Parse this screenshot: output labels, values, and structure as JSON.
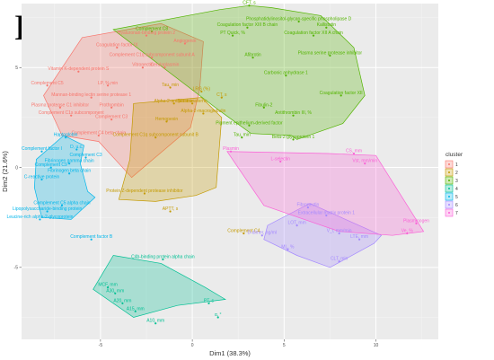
{
  "chart_data": {
    "type": "scatter",
    "panel_label": "B",
    "xlabel": "Dim1 (38.3%)",
    "ylabel": "Dim2 (21.6%)",
    "xlim": [
      -9.3,
      13.4
    ],
    "ylim": [
      -8.6,
      8.2
    ],
    "xticks": [
      -5,
      0,
      5,
      10
    ],
    "yticks": [
      -5,
      0,
      5
    ],
    "tick_labels": [
      "-5",
      "0",
      "5",
      "10"
    ],
    "ytick_labels": [
      "-5",
      "0",
      "5"
    ],
    "grid": true,
    "legend": {
      "title": "cluster",
      "placement": "right",
      "entries": [
        "1",
        "2",
        "3",
        "4",
        "5",
        "6",
        "7"
      ]
    },
    "cluster_colors": [
      "#F8766D",
      "#C49A00",
      "#53B400",
      "#00C094",
      "#00B6EB",
      "#A58AFF",
      "#FB61D7"
    ],
    "hulls": [
      {
        "cluster": "1",
        "points": [
          [
            -6.0,
            6.5
          ],
          [
            -1.7,
            7.2
          ],
          [
            0.6,
            6.3
          ],
          [
            0.4,
            3.9
          ],
          [
            -0.1,
            2.0
          ],
          [
            -3.3,
            -0.5
          ],
          [
            -5.1,
            1.3
          ],
          [
            -7.1,
            1.6
          ],
          [
            -8.1,
            3.6
          ]
        ]
      },
      {
        "cluster": "2",
        "points": [
          [
            -3.2,
            3.2
          ],
          [
            0.5,
            3.5
          ],
          [
            1.6,
            2.5
          ],
          [
            1.3,
            -1.0
          ],
          [
            0.2,
            -1.4
          ],
          [
            -2.0,
            -1.7
          ],
          [
            -4.0,
            -1.6
          ],
          [
            -3.4,
            0.4
          ]
        ]
      },
      {
        "cluster": "3",
        "points": [
          [
            -4.3,
            6.9
          ],
          [
            1.5,
            7.9
          ],
          [
            3.1,
            8.1
          ],
          [
            4.3,
            8.0
          ],
          [
            7.0,
            7.6
          ],
          [
            8.8,
            6.0
          ],
          [
            9.4,
            3.6
          ],
          [
            8.2,
            2.2
          ],
          [
            5.7,
            1.4
          ],
          [
            5.4,
            1.6
          ],
          [
            3.2,
            1.7
          ],
          [
            1.4,
            2.9
          ]
        ]
      },
      {
        "cluster": "4",
        "points": [
          [
            -1.7,
            -4.8
          ],
          [
            0.7,
            -6.0
          ],
          [
            1.8,
            -6.6
          ],
          [
            -0.8,
            -6.9
          ],
          [
            -3.2,
            -7.5
          ],
          [
            -5.4,
            -6.1
          ],
          [
            -4.3,
            -4.4
          ]
        ]
      },
      {
        "cluster": "5",
        "points": [
          [
            -7.0,
            1.6
          ],
          [
            -5.9,
            1.1
          ],
          [
            -6.1,
            0.2
          ],
          [
            -5.7,
            -1.2
          ],
          [
            -5.3,
            -1.5
          ],
          [
            -6.6,
            -2.6
          ],
          [
            -8.2,
            -2.5
          ],
          [
            -8.6,
            -1.0
          ],
          [
            -8.5,
            0.4
          ]
        ]
      },
      {
        "cluster": "6",
        "points": [
          [
            6.4,
            -1.8
          ],
          [
            10.3,
            -3.4
          ],
          [
            9.9,
            -3.8
          ],
          [
            7.5,
            -5.0
          ],
          [
            5.7,
            -4.4
          ],
          [
            3.9,
            -3.6
          ],
          [
            4.1,
            -2.9
          ]
        ]
      },
      {
        "cluster": "7",
        "points": [
          [
            1.9,
            0.8
          ],
          [
            7.4,
            0.7
          ],
          [
            10.0,
            0.6
          ],
          [
            12.6,
            -3.2
          ],
          [
            10.9,
            -3.4
          ],
          [
            8.0,
            -3.2
          ],
          [
            6.1,
            -2.6
          ],
          [
            3.9,
            -1.9
          ]
        ]
      }
    ],
    "points": [
      {
        "label": "Hyaluronan-binding protein 2",
        "x": -2.5,
        "y": 6.6,
        "cluster": "1"
      },
      {
        "label": "Angiogenin",
        "x": -0.4,
        "y": 6.2,
        "cluster": "1"
      },
      {
        "label": "Coagulation factor IX",
        "x": -4.1,
        "y": 6.0,
        "cluster": "1"
      },
      {
        "label": "Complement C1q subcomponent subunit A",
        "x": -2.2,
        "y": 5.5,
        "cluster": "1"
      },
      {
        "label": "Vitronectin",
        "x": -2.7,
        "y": 5.0,
        "cluster": "1"
      },
      {
        "label": "Vitamin K-dependent protein S",
        "x": -6.2,
        "y": 4.8,
        "cluster": "1"
      },
      {
        "label": "Complement C5",
        "x": -7.9,
        "y": 4.1,
        "cluster": "1"
      },
      {
        "label": "LP, %,min",
        "x": -4.6,
        "y": 4.1,
        "cluster": "1"
      },
      {
        "label": "Mannan-binding lectin serine protease 1",
        "x": -5.5,
        "y": 3.5,
        "cluster": "1"
      },
      {
        "label": "Plasma protease C1 inhibitor",
        "x": -7.2,
        "y": 3.0,
        "cluster": "1"
      },
      {
        "label": "Prothrombin",
        "x": -4.4,
        "y": 3.0,
        "cluster": "1"
      },
      {
        "label": "Complement C1s subcomponent",
        "x": -6.6,
        "y": 2.6,
        "cluster": "1"
      },
      {
        "label": "Complement C3",
        "x": -4.4,
        "y": 2.4,
        "cluster": "1"
      },
      {
        "label": "Complement C4 beta chain",
        "x": -5.1,
        "y": 1.6,
        "cluster": "1"
      },
      {
        "label": "Ceruloplasmin",
        "x": -1.5,
        "y": 5.0,
        "cluster": "1"
      },
      {
        "label": "Tau, min",
        "x": -1.2,
        "y": 4.0,
        "cluster": "2"
      },
      {
        "label": "Alpha-2-antiplasmin",
        "x": -1.0,
        "y": 3.2,
        "cluster": "2"
      },
      {
        "label": "LRG (%)",
        "x": 0.5,
        "y": 3.8,
        "cluster": "2"
      },
      {
        "label": "Serotransferrin",
        "x": 0.0,
        "y": 3.2,
        "cluster": "2"
      },
      {
        "label": "Alpha-2-macroglobulin",
        "x": 0.6,
        "y": 2.7,
        "cluster": "2"
      },
      {
        "label": "Hemopexin",
        "x": -1.4,
        "y": 2.3,
        "cluster": "2"
      },
      {
        "label": "Complement C1q subcomponent subunit B",
        "x": -2.0,
        "y": 1.5,
        "cluster": "2"
      },
      {
        "label": "CT, s",
        "x": 1.6,
        "y": 3.5,
        "cluster": "2"
      },
      {
        "label": "Protein Z-dependent protease inhibitor",
        "x": -2.6,
        "y": -1.3,
        "cluster": "2"
      },
      {
        "label": "APTT, s",
        "x": -1.2,
        "y": -2.2,
        "cluster": "2"
      },
      {
        "label": "Complement C4",
        "x": 2.8,
        "y": -3.3,
        "cluster": "2"
      },
      {
        "label": "CFT, s",
        "x": 3.1,
        "y": 8.1,
        "cluster": "3"
      },
      {
        "label": "Complement C8",
        "x": -2.2,
        "y": 6.8,
        "cluster": "3"
      },
      {
        "label": "Phosphatidylinositol-glycan-specific phospholipase D",
        "x": 5.8,
        "y": 7.3,
        "cluster": "3"
      },
      {
        "label": "Coagulation factor XIII B chain",
        "x": 3.0,
        "y": 7.0,
        "cluster": "3"
      },
      {
        "label": "Kallistatin",
        "x": 7.3,
        "y": 7.0,
        "cluster": "3"
      },
      {
        "label": "PT Quick, %",
        "x": 2.2,
        "y": 6.6,
        "cluster": "3"
      },
      {
        "label": "Coagulation factor XII A chain",
        "x": 6.6,
        "y": 6.6,
        "cluster": "3"
      },
      {
        "label": "Afibrotin",
        "x": 3.3,
        "y": 5.5,
        "cluster": "3"
      },
      {
        "label": "Plasma serine protease inhibitor",
        "x": 7.5,
        "y": 5.6,
        "cluster": "3"
      },
      {
        "label": "Carbonic anhydrase 1",
        "x": 5.1,
        "y": 4.6,
        "cluster": "3"
      },
      {
        "label": "Fibulin-2",
        "x": 3.9,
        "y": 3.0,
        "cluster": "3"
      },
      {
        "label": "Antithrombin III, %",
        "x": 5.5,
        "y": 2.6,
        "cluster": "3"
      },
      {
        "label": "Coagulation factor XII",
        "x": 8.1,
        "y": 3.6,
        "cluster": "3"
      },
      {
        "label": "Pigment epithelium-derived factor",
        "x": 3.1,
        "y": 2.1,
        "cluster": "3"
      },
      {
        "label": "Tau, min",
        "x": 2.7,
        "y": 1.5,
        "cluster": "3"
      },
      {
        "label": "Beta-2-glycoprotein 1",
        "x": 5.5,
        "y": 1.4,
        "cluster": "3"
      },
      {
        "label": "C4b-binding protein alpha chain",
        "x": -1.6,
        "y": -4.6,
        "cluster": "4"
      },
      {
        "label": "MCF, mm",
        "x": -4.6,
        "y": -6.0,
        "cluster": "4"
      },
      {
        "label": "A30, mm",
        "x": -4.2,
        "y": -6.3,
        "cluster": "4"
      },
      {
        "label": "A20, mm",
        "x": -3.8,
        "y": -6.8,
        "cluster": "4"
      },
      {
        "label": "A15, mm",
        "x": -3.1,
        "y": -7.2,
        "cluster": "4"
      },
      {
        "label": "A10, mm",
        "x": -2.0,
        "y": -7.8,
        "cluster": "4"
      },
      {
        "label": "PT, s",
        "x": 0.9,
        "y": -6.8,
        "cluster": "4"
      },
      {
        "label": "α, °",
        "x": 1.4,
        "y": -7.5,
        "cluster": "4"
      },
      {
        "label": "Haptoglobin",
        "x": -6.9,
        "y": 1.5,
        "cluster": "5"
      },
      {
        "label": "D, u.c.",
        "x": -6.3,
        "y": 0.9,
        "cluster": "5"
      },
      {
        "label": "Complement factor I",
        "x": -8.2,
        "y": 0.8,
        "cluster": "5"
      },
      {
        "label": "Complement C3",
        "x": -5.8,
        "y": 0.5,
        "cluster": "5"
      },
      {
        "label": "Fibrinogen gamma chain",
        "x": -6.7,
        "y": 0.2,
        "cluster": "5"
      },
      {
        "label": "Complement C9",
        "x": -7.7,
        "y": 0.0,
        "cluster": "5"
      },
      {
        "label": "Fibrinogen beta chain",
        "x": -6.7,
        "y": -0.3,
        "cluster": "5"
      },
      {
        "label": "C-reactive protein",
        "x": -8.2,
        "y": -0.6,
        "cluster": "5"
      },
      {
        "label": "Complement C5 alpha chain",
        "x": -7.1,
        "y": -1.9,
        "cluster": "5"
      },
      {
        "label": "Lipopolysaccharide-binding protein",
        "x": -7.9,
        "y": -2.2,
        "cluster": "5"
      },
      {
        "label": "Leucine-rich alpha-2-glycoprotein",
        "x": -8.3,
        "y": -2.6,
        "cluster": "5"
      },
      {
        "label": "Complement factor B",
        "x": -5.5,
        "y": -3.6,
        "cluster": "5"
      },
      {
        "label": "Fibronectin",
        "x": 6.3,
        "y": -2.0,
        "cluster": "6"
      },
      {
        "label": "Extracellular matrix protein 1",
        "x": 7.3,
        "y": -2.4,
        "cluster": "6"
      },
      {
        "label": "LOT, mm",
        "x": 5.7,
        "y": -2.9,
        "cluster": "6"
      },
      {
        "label": "D-dimer, ng/ml",
        "x": 3.8,
        "y": -3.4,
        "cluster": "6"
      },
      {
        "label": "V_i, mm/min",
        "x": 8.0,
        "y": -3.3,
        "cluster": "6"
      },
      {
        "label": "LTE, mm",
        "x": 9.1,
        "y": -3.6,
        "cluster": "6"
      },
      {
        "label": "ML, %",
        "x": 5.2,
        "y": -4.1,
        "cluster": "6"
      },
      {
        "label": "CLT, min",
        "x": 8.0,
        "y": -4.7,
        "cluster": "6"
      },
      {
        "label": "CS, mm",
        "x": 8.8,
        "y": 0.7,
        "cluster": "7"
      },
      {
        "label": "Vst, mm/min",
        "x": 9.4,
        "y": 0.2,
        "cluster": "7"
      },
      {
        "label": "Plasmin",
        "x": 2.1,
        "y": 0.8,
        "cluster": "7"
      },
      {
        "label": "L-selectin",
        "x": 4.8,
        "y": 0.3,
        "cluster": "7"
      },
      {
        "label": "Plasminogen",
        "x": 12.2,
        "y": -2.8,
        "cluster": "7"
      },
      {
        "label": "Ve, %",
        "x": 11.7,
        "y": -3.3,
        "cluster": "7"
      }
    ]
  }
}
